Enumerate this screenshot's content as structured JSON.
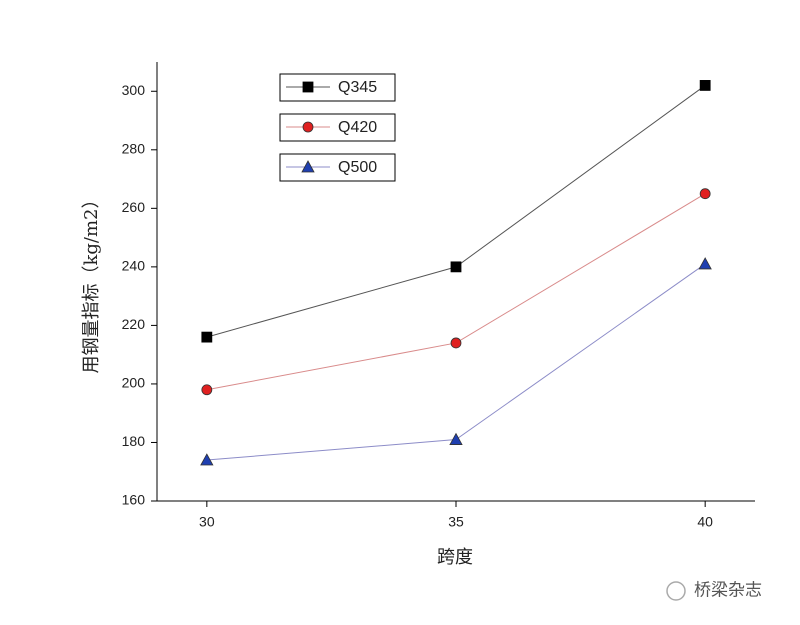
{
  "chart_data": {
    "type": "line",
    "x_label": "跨度",
    "y_label": "用钢量指标（kg/m2）",
    "watermark": "桥梁杂志",
    "x": [
      30,
      35,
      40
    ],
    "series": [
      {
        "name": "Q345",
        "color": "#555555",
        "marker": "square",
        "marker_color": "#000000",
        "values": [
          216,
          240,
          302
        ]
      },
      {
        "name": "Q420",
        "color": "#d98b8b",
        "marker": "circle",
        "marker_color": "#e02020",
        "values": [
          198,
          214,
          265
        ]
      },
      {
        "name": "Q500",
        "color": "#8c8cc8",
        "marker": "triangle",
        "marker_color": "#1f3fb0",
        "values": [
          174,
          181,
          241
        ]
      }
    ],
    "xlim": [
      29,
      41
    ],
    "xticks": [
      30,
      35,
      40
    ],
    "ylim": [
      160,
      310
    ],
    "yticks": [
      160,
      180,
      200,
      220,
      240,
      260,
      280,
      300
    ],
    "grid": false
  }
}
